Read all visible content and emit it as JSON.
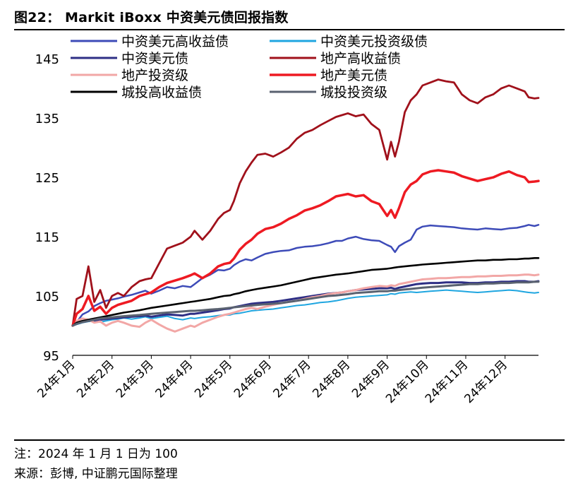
{
  "figure": {
    "title": "图22： Markit iBoxx 中资美元债回报指数",
    "note": "注：2024 年 1 月 1 日为 100",
    "source": "来源：彭博, 中证鹏元国际整理"
  },
  "chart_data": {
    "type": "line",
    "title": "Markit iBoxx 中资美元债回报指数",
    "xlabel": "",
    "ylabel": "",
    "ylim": [
      95,
      148
    ],
    "yticks": [
      95,
      105,
      115,
      125,
      135,
      145
    ],
    "xlim": [
      1,
      12.85
    ],
    "xtick_values": [
      1,
      2,
      3,
      4,
      5,
      6,
      7,
      8,
      9,
      10,
      11,
      12
    ],
    "xtick_labels": [
      "24年1月",
      "24年2月",
      "24年3月",
      "24年4月",
      "24年5月",
      "24年6月",
      "24年7月",
      "24年8月",
      "24年9月",
      "24年10月",
      "24年11月",
      "24年12月"
    ],
    "x": [
      1.0,
      1.1,
      1.25,
      1.4,
      1.55,
      1.7,
      1.85,
      2.0,
      2.15,
      2.3,
      2.5,
      2.7,
      2.85,
      3.0,
      3.2,
      3.4,
      3.6,
      3.8,
      4.0,
      4.1,
      4.3,
      4.5,
      4.7,
      4.85,
      5.0,
      5.1,
      5.25,
      5.4,
      5.55,
      5.7,
      5.9,
      6.1,
      6.3,
      6.5,
      6.7,
      6.9,
      7.1,
      7.3,
      7.5,
      7.7,
      7.85,
      8.0,
      8.2,
      8.4,
      8.6,
      8.8,
      9.0,
      9.1,
      9.2,
      9.3,
      9.45,
      9.6,
      9.75,
      9.9,
      10.1,
      10.3,
      10.5,
      10.7,
      10.9,
      11.1,
      11.3,
      11.5,
      11.7,
      11.9,
      12.1,
      12.3,
      12.5,
      12.6,
      12.75,
      12.85
    ],
    "grid": false,
    "legend": "top, two columns",
    "series": [
      {
        "name": "中资美元高收益债",
        "color": "#3D4BB8",
        "width": 2.5,
        "values": [
          100.0,
          100.6,
          101.9,
          102.4,
          103.3,
          103.8,
          104.2,
          104.4,
          104.6,
          104.9,
          105.2,
          105.6,
          105.9,
          105.4,
          105.9,
          106.5,
          106.3,
          106.7,
          106.5,
          107.0,
          108.0,
          108.6,
          109.4,
          109.3,
          109.6,
          110.2,
          110.8,
          111.2,
          111.0,
          111.5,
          112.1,
          112.4,
          112.6,
          112.7,
          113.1,
          113.3,
          113.4,
          113.6,
          113.9,
          114.3,
          114.3,
          114.7,
          115.0,
          114.6,
          114.4,
          114.3,
          113.6,
          113.3,
          112.4,
          113.4,
          114.0,
          114.5,
          116.2,
          116.7,
          116.9,
          116.8,
          116.7,
          116.6,
          116.4,
          116.3,
          116.2,
          116.4,
          116.3,
          116.2,
          116.4,
          116.5,
          116.8,
          117.0,
          116.8,
          117.0
        ]
      },
      {
        "name": "中资美元投资级债",
        "color": "#1FA6E0",
        "width": 2.0,
        "values": [
          100.0,
          100.2,
          100.5,
          100.7,
          100.8,
          100.6,
          100.8,
          101.0,
          101.1,
          101.3,
          101.1,
          101.3,
          101.5,
          101.2,
          101.4,
          101.6,
          101.2,
          101.0,
          101.3,
          101.2,
          101.4,
          101.5,
          101.7,
          101.8,
          101.8,
          102.0,
          102.1,
          102.3,
          102.5,
          102.6,
          102.7,
          102.8,
          103.0,
          103.2,
          103.4,
          103.5,
          103.7,
          103.9,
          104.0,
          104.2,
          104.4,
          104.6,
          104.8,
          104.9,
          105.0,
          105.1,
          105.2,
          105.4,
          105.3,
          105.5,
          105.6,
          105.7,
          105.6,
          105.7,
          105.8,
          105.9,
          106.0,
          105.9,
          105.8,
          105.7,
          105.6,
          105.7,
          105.8,
          105.9,
          106.0,
          105.9,
          105.7,
          105.6,
          105.5,
          105.6
        ]
      },
      {
        "name": "中资美元债",
        "color": "#2E2F85",
        "width": 3.0,
        "values": [
          100.0,
          100.3,
          100.6,
          100.8,
          100.9,
          101.0,
          101.1,
          101.2,
          101.3,
          101.4,
          101.5,
          101.6,
          101.7,
          101.5,
          101.7,
          101.9,
          101.8,
          101.7,
          102.0,
          102.0,
          102.2,
          102.4,
          102.6,
          102.8,
          102.9,
          103.1,
          103.3,
          103.5,
          103.7,
          103.8,
          103.9,
          104.0,
          104.2,
          104.4,
          104.6,
          104.8,
          105.0,
          105.2,
          105.4,
          105.5,
          105.6,
          105.8,
          106.0,
          106.1,
          106.2,
          106.3,
          106.3,
          106.4,
          106.2,
          106.4,
          106.6,
          106.8,
          107.0,
          107.1,
          107.2,
          107.2,
          107.3,
          107.3,
          107.3,
          107.2,
          107.2,
          107.3,
          107.3,
          107.4,
          107.4,
          107.5,
          107.5,
          107.4,
          107.4,
          107.5
        ]
      },
      {
        "name": "地产高收益债",
        "color": "#A0111B",
        "width": 2.8,
        "values": [
          100.0,
          104.5,
          105.0,
          110.0,
          104.0,
          106.0,
          103.0,
          105.0,
          105.5,
          105.0,
          106.5,
          107.5,
          107.8,
          108.0,
          110.5,
          113.0,
          113.5,
          114.0,
          115.0,
          116.0,
          114.5,
          116.0,
          118.0,
          119.0,
          119.5,
          121.0,
          124.0,
          126.0,
          127.5,
          128.8,
          129.0,
          128.5,
          129.2,
          130.0,
          131.5,
          132.5,
          133.0,
          133.8,
          134.5,
          135.2,
          135.5,
          135.8,
          135.3,
          135.6,
          134.0,
          133.0,
          128.0,
          131.0,
          128.5,
          131.0,
          136.0,
          138.0,
          139.0,
          140.5,
          141.0,
          141.5,
          141.2,
          141.0,
          139.0,
          138.0,
          137.5,
          138.5,
          139.0,
          140.0,
          140.5,
          140.0,
          139.5,
          138.5,
          138.3,
          138.4
        ]
      },
      {
        "name": "地产投资级",
        "color": "#F2A7A6",
        "width": 3.0,
        "values": [
          100.0,
          100.8,
          101.2,
          101.0,
          100.5,
          100.7,
          100.0,
          100.5,
          100.8,
          100.5,
          100.0,
          99.8,
          100.5,
          101.0,
          100.2,
          99.5,
          99.0,
          99.5,
          100.0,
          99.8,
          100.5,
          101.0,
          101.5,
          101.8,
          102.0,
          102.2,
          102.5,
          102.8,
          103.0,
          102.8,
          103.2,
          103.5,
          103.8,
          104.0,
          104.2,
          104.5,
          104.8,
          105.0,
          105.3,
          105.5,
          105.6,
          105.8,
          106.0,
          106.3,
          106.5,
          106.7,
          106.6,
          106.8,
          106.7,
          107.0,
          107.2,
          107.4,
          107.6,
          107.8,
          107.9,
          108.0,
          108.0,
          108.1,
          108.2,
          108.2,
          108.3,
          108.3,
          108.4,
          108.4,
          108.5,
          108.5,
          108.6,
          108.6,
          108.5,
          108.6
        ]
      },
      {
        "name": "地产美元债",
        "color": "#EE1A22",
        "width": 3.5,
        "values": [
          100.0,
          102.0,
          102.8,
          105.0,
          102.5,
          103.2,
          102.0,
          103.0,
          103.5,
          103.8,
          104.2,
          105.0,
          105.3,
          105.6,
          106.5,
          107.2,
          107.6,
          108.0,
          108.5,
          108.8,
          108.0,
          108.8,
          110.0,
          110.4,
          110.6,
          111.3,
          112.8,
          113.8,
          114.5,
          115.5,
          116.3,
          116.6,
          117.2,
          118.0,
          118.6,
          119.4,
          119.8,
          120.3,
          121.0,
          121.8,
          122.0,
          122.2,
          121.8,
          122.0,
          121.0,
          120.5,
          118.5,
          119.5,
          118.2,
          119.8,
          122.5,
          123.8,
          124.4,
          125.5,
          126.0,
          126.2,
          126.0,
          125.8,
          125.2,
          124.8,
          124.4,
          124.7,
          125.0,
          125.6,
          126.0,
          125.4,
          125.0,
          124.2,
          124.3,
          124.4
        ]
      },
      {
        "name": "城投高收益债",
        "color": "#000000",
        "width": 2.6,
        "values": [
          100.0,
          100.5,
          100.8,
          101.0,
          101.2,
          101.4,
          101.6,
          101.8,
          102.0,
          102.2,
          102.4,
          102.6,
          102.8,
          103.0,
          103.2,
          103.4,
          103.6,
          103.8,
          104.0,
          104.1,
          104.3,
          104.5,
          104.8,
          105.0,
          105.1,
          105.3,
          105.5,
          105.8,
          106.0,
          106.2,
          106.4,
          106.6,
          106.8,
          107.1,
          107.4,
          107.7,
          108.0,
          108.2,
          108.4,
          108.6,
          108.7,
          108.8,
          109.0,
          109.2,
          109.4,
          109.5,
          109.6,
          109.7,
          109.8,
          109.9,
          110.0,
          110.1,
          110.2,
          110.3,
          110.4,
          110.5,
          110.6,
          110.7,
          110.8,
          110.9,
          111.0,
          111.0,
          111.1,
          111.1,
          111.2,
          111.2,
          111.3,
          111.3,
          111.4,
          111.4
        ]
      },
      {
        "name": "城投投资级",
        "color": "#5A6270",
        "width": 3.0,
        "values": [
          100.0,
          100.3,
          100.6,
          100.8,
          101.0,
          101.2,
          101.3,
          101.4,
          101.5,
          101.6,
          101.7,
          101.8,
          101.9,
          102.0,
          102.1,
          102.2,
          102.3,
          102.4,
          102.5,
          102.5,
          102.6,
          102.7,
          102.8,
          102.9,
          103.0,
          103.1,
          103.2,
          103.3,
          103.4,
          103.5,
          103.6,
          103.7,
          103.8,
          104.0,
          104.2,
          104.4,
          104.6,
          104.8,
          105.0,
          105.1,
          105.2,
          105.3,
          105.5,
          105.6,
          105.7,
          105.8,
          105.8,
          105.9,
          105.9,
          106.0,
          106.1,
          106.2,
          106.3,
          106.4,
          106.5,
          106.6,
          106.7,
          106.8,
          106.9,
          107.0,
          107.0,
          107.1,
          107.1,
          107.2,
          107.2,
          107.3,
          107.3,
          107.3,
          107.4,
          107.4
        ]
      }
    ]
  }
}
